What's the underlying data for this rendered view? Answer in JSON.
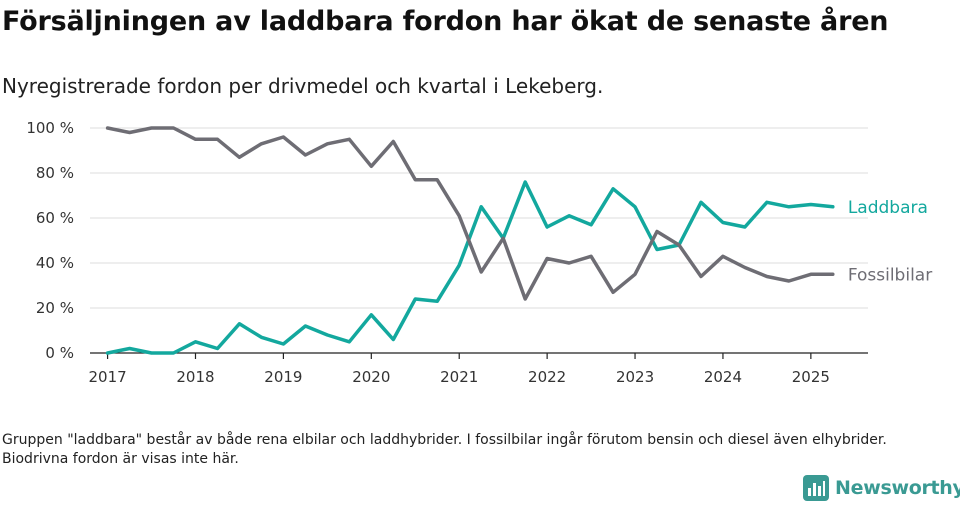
{
  "title": "Försäljningen av laddbara fordon har ökat de senaste åren",
  "subtitle": "Nyregistrerade fordon per drivmedel och kvartal i Lekeberg.",
  "note": "Gruppen \"laddbara\" består av både rena elbilar och laddhybrider. I fossilbilar ingår förutom bensin och diesel även elhybrider. Biodrivna fordon är visas inte här.",
  "brand": {
    "name": "Newsworthy",
    "logo_icon": "bar-chart-icon",
    "color": "#3a9a93"
  },
  "chart_data": {
    "type": "line",
    "x": [
      2017.0,
      2017.25,
      2017.5,
      2017.75,
      2018.0,
      2018.25,
      2018.5,
      2018.75,
      2019.0,
      2019.25,
      2019.5,
      2019.75,
      2020.0,
      2020.25,
      2020.5,
      2020.75,
      2021.0,
      2021.25,
      2021.5,
      2021.75,
      2022.0,
      2022.25,
      2022.5,
      2022.75,
      2023.0,
      2023.25,
      2023.5,
      2023.75,
      2024.0,
      2024.25,
      2024.5,
      2024.75,
      2025.0,
      2025.25
    ],
    "xticks": [
      "2017",
      "2018",
      "2019",
      "2020",
      "2021",
      "2022",
      "2023",
      "2024",
      "2025"
    ],
    "xlim": [
      2016.8,
      2025.65
    ],
    "ylim": [
      0,
      100
    ],
    "yticks": [
      "0 %",
      "20 %",
      "40 %",
      "60 %",
      "80 %",
      "100 %"
    ],
    "grid": true,
    "legend": "right, at end of lines",
    "series": [
      {
        "name": "Laddbara",
        "color": "#13a89e",
        "values": [
          0,
          2,
          0,
          0,
          5,
          2,
          13,
          7,
          4,
          12,
          8,
          5,
          17,
          6,
          24,
          23,
          39,
          65,
          51,
          76,
          56,
          61,
          57,
          73,
          65,
          46,
          48,
          67,
          58,
          56,
          67,
          65,
          66,
          65
        ]
      },
      {
        "name": "Fossilbilar",
        "color": "#6e6d74",
        "values": [
          100,
          98,
          100,
          100,
          95,
          95,
          87,
          93,
          96,
          88,
          93,
          95,
          83,
          94,
          77,
          77,
          61,
          36,
          51,
          24,
          42,
          40,
          43,
          27,
          35,
          54,
          48,
          34,
          43,
          38,
          34,
          32,
          35,
          35
        ]
      }
    ]
  }
}
